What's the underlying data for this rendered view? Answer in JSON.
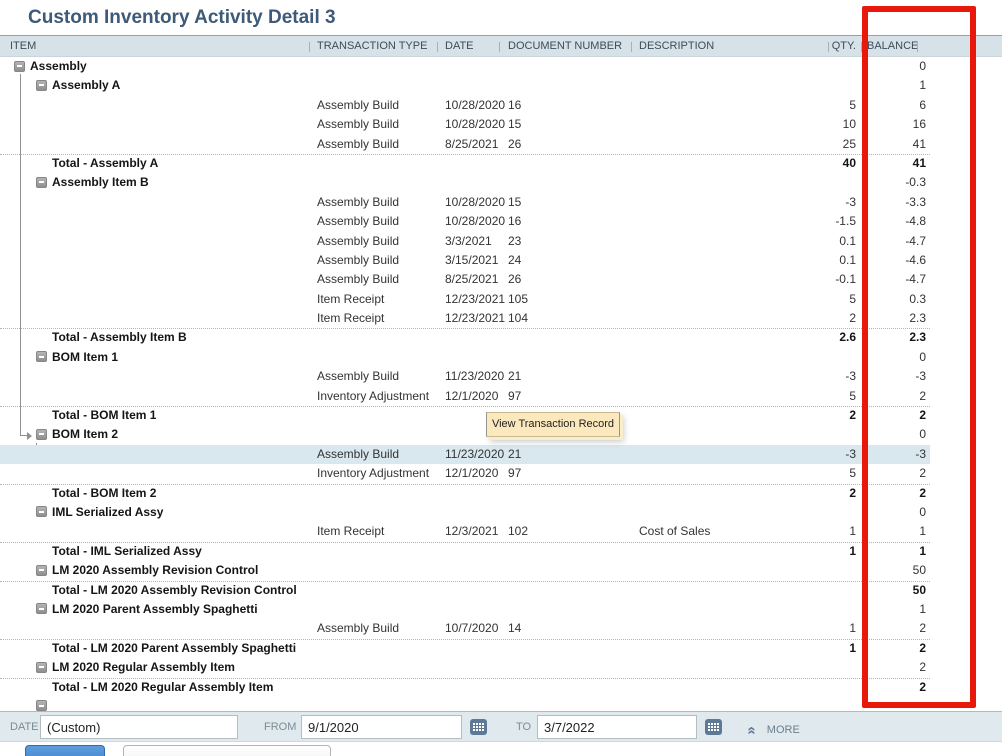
{
  "title": "Custom Inventory Activity Detail 3",
  "tooltip": {
    "label": "View Transaction Record"
  },
  "icons": {
    "collapse": "minus-square",
    "calendar": "calendar-grid",
    "more": "double-chevron-up"
  },
  "colors": {
    "title": "#3d5a77",
    "header_bg": "#d6e2e8",
    "highlight_row": "#d9e7ee",
    "annotation_red": "#e8190b",
    "tooltip_bg": "#fbe8bc",
    "filter_bar_bg": "#dfe9ee",
    "calendar_icon": "#5d7996",
    "blue_button": "#3f7fc7"
  },
  "table": {
    "columns": [
      "ITEM",
      "TRANSACTION TYPE",
      "DATE",
      "DOCUMENT NUMBER",
      "DESCRIPTION",
      "QTY.",
      "BALANCE"
    ],
    "rows": [
      {
        "kind": "item",
        "level": 0,
        "item": "Assembly",
        "balance": "0"
      },
      {
        "kind": "item",
        "level": 1,
        "item": "Assembly A",
        "balance": "1"
      },
      {
        "kind": "txn",
        "type": "Assembly Build",
        "date": "10/28/2020",
        "doc": "16",
        "qty": "5",
        "balance": "6"
      },
      {
        "kind": "txn",
        "type": "Assembly Build",
        "date": "10/28/2020",
        "doc": "15",
        "qty": "10",
        "balance": "16"
      },
      {
        "kind": "txn",
        "type": "Assembly Build",
        "date": "8/25/2021",
        "doc": "26",
        "qty": "25",
        "balance": "41"
      },
      {
        "kind": "total",
        "item": "Total - Assembly A",
        "qty": "40",
        "balance": "41"
      },
      {
        "kind": "item",
        "level": 1,
        "item": "Assembly Item B",
        "balance": "-0.3"
      },
      {
        "kind": "txn",
        "type": "Assembly Build",
        "date": "10/28/2020",
        "doc": "15",
        "qty": "-3",
        "balance": "-3.3"
      },
      {
        "kind": "txn",
        "type": "Assembly Build",
        "date": "10/28/2020",
        "doc": "16",
        "qty": "-1.5",
        "balance": "-4.8"
      },
      {
        "kind": "txn",
        "type": "Assembly Build",
        "date": "3/3/2021",
        "doc": "23",
        "qty": "0.1",
        "balance": "-4.7"
      },
      {
        "kind": "txn",
        "type": "Assembly Build",
        "date": "3/15/2021",
        "doc": "24",
        "qty": "0.1",
        "balance": "-4.6"
      },
      {
        "kind": "txn",
        "type": "Assembly Build",
        "date": "8/25/2021",
        "doc": "26",
        "qty": "-0.1",
        "balance": "-4.7"
      },
      {
        "kind": "txn",
        "type": "Item Receipt",
        "date": "12/23/2021",
        "doc": "105",
        "qty": "5",
        "balance": "0.3"
      },
      {
        "kind": "txn",
        "type": "Item Receipt",
        "date": "12/23/2021",
        "doc": "104",
        "qty": "2",
        "balance": "2.3"
      },
      {
        "kind": "total",
        "item": "Total - Assembly Item B",
        "qty": "2.6",
        "balance": "2.3"
      },
      {
        "kind": "item",
        "level": 1,
        "item": "BOM Item 1",
        "balance": "0"
      },
      {
        "kind": "txn",
        "type": "Assembly Build",
        "date": "11/23/2020",
        "doc": "21",
        "qty": "-3",
        "balance": "-3"
      },
      {
        "kind": "txn",
        "type": "Inventory Adjustment",
        "date": "12/1/2020",
        "doc": "97",
        "qty": "5",
        "balance": "2"
      },
      {
        "kind": "total",
        "item": "Total - BOM Item 1",
        "qty": "2",
        "balance": "2"
      },
      {
        "kind": "item",
        "level": 1,
        "item": "BOM Item 2",
        "balance": "0"
      },
      {
        "kind": "txn",
        "type": "Assembly Build",
        "date": "11/23/2020",
        "doc": "21",
        "qty": "-3",
        "balance": "-3",
        "highlight": true
      },
      {
        "kind": "txn",
        "type": "Inventory Adjustment",
        "date": "12/1/2020",
        "doc": "97",
        "qty": "5",
        "balance": "2"
      },
      {
        "kind": "total",
        "item": "Total - BOM Item 2",
        "qty": "2",
        "balance": "2"
      },
      {
        "kind": "item",
        "level": 1,
        "item": "IML Serialized Assy",
        "balance": "0"
      },
      {
        "kind": "txn",
        "type": "Item Receipt",
        "date": "12/3/2021",
        "doc": "102",
        "desc": "Cost of Sales",
        "qty": "1",
        "balance": "1"
      },
      {
        "kind": "total",
        "item": "Total - IML Serialized Assy",
        "qty": "1",
        "balance": "1"
      },
      {
        "kind": "item",
        "level": 1,
        "item": "LM 2020 Assembly Revision Control",
        "balance": "50"
      },
      {
        "kind": "total",
        "item": "Total - LM 2020 Assembly Revision Control",
        "balance": "50"
      },
      {
        "kind": "item",
        "level": 1,
        "item": "LM 2020 Parent Assembly Spaghetti",
        "balance": "1"
      },
      {
        "kind": "txn",
        "type": "Assembly Build",
        "date": "10/7/2020",
        "doc": "14",
        "qty": "1",
        "balance": "2"
      },
      {
        "kind": "total",
        "item": "Total - LM 2020 Parent Assembly Spaghetti",
        "qty": "1",
        "balance": "2"
      },
      {
        "kind": "item",
        "level": 1,
        "item": "LM 2020 Regular Assembly Item",
        "balance": "2"
      },
      {
        "kind": "total",
        "item": "Total - LM 2020 Regular Assembly Item",
        "balance": "2"
      },
      {
        "kind": "stub",
        "level": 1
      }
    ]
  },
  "filter_bar": {
    "date_label": "DATE",
    "date_value": "(Custom)",
    "from_label": "FROM",
    "from_value": "9/1/2020",
    "to_label": "TO",
    "to_value": "3/7/2022",
    "more_label": "MORE"
  }
}
